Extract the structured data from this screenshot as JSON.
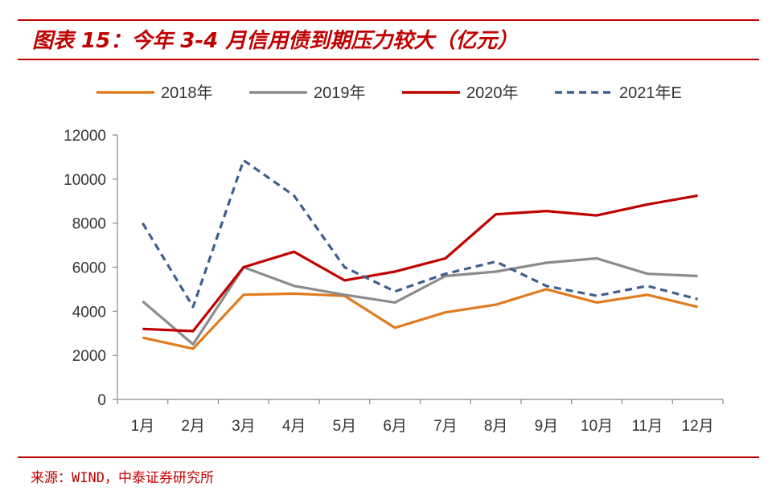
{
  "header": {
    "title": "图表 15：今年 3-4 月信用债到期压力较大（亿元）"
  },
  "footer": {
    "source": "来源：WIND，中泰证券研究所"
  },
  "colors": {
    "accent": "#c00000",
    "s2018": "#e07b1f",
    "s2019": "#8c8c8c",
    "s2020": "#c00000",
    "s2021": "#3e5f8f"
  },
  "chart_data": {
    "type": "line",
    "categories": [
      "1月",
      "2月",
      "3月",
      "4月",
      "5月",
      "6月",
      "7月",
      "8月",
      "9月",
      "10月",
      "11月",
      "12月"
    ],
    "ylim": [
      0,
      12000
    ],
    "yticks": [
      "0",
      "2000",
      "4000",
      "6000",
      "8000",
      "10000",
      "12000"
    ],
    "grid": false,
    "legend": "top",
    "series": [
      {
        "name": "2018年",
        "color": "#e07b1f",
        "dash": false,
        "values": [
          2800,
          2300,
          4750,
          4800,
          4700,
          3250,
          3950,
          4300,
          5000,
          4400,
          4750,
          4200
        ]
      },
      {
        "name": "2019年",
        "color": "#8c8c8c",
        "dash": false,
        "values": [
          4450,
          2500,
          6000,
          5150,
          4750,
          4400,
          5600,
          5800,
          6200,
          6400,
          5700,
          5600
        ]
      },
      {
        "name": "2020年",
        "color": "#c00000",
        "dash": false,
        "values": [
          3200,
          3100,
          6000,
          6700,
          5400,
          5800,
          6400,
          8400,
          8550,
          8350,
          8850,
          9250
        ]
      },
      {
        "name": "2021年E",
        "color": "#3e5f8f",
        "dash": true,
        "values": [
          8000,
          4200,
          10850,
          9250,
          6000,
          4900,
          5700,
          6250,
          5150,
          4700,
          5150,
          4550
        ]
      }
    ]
  }
}
